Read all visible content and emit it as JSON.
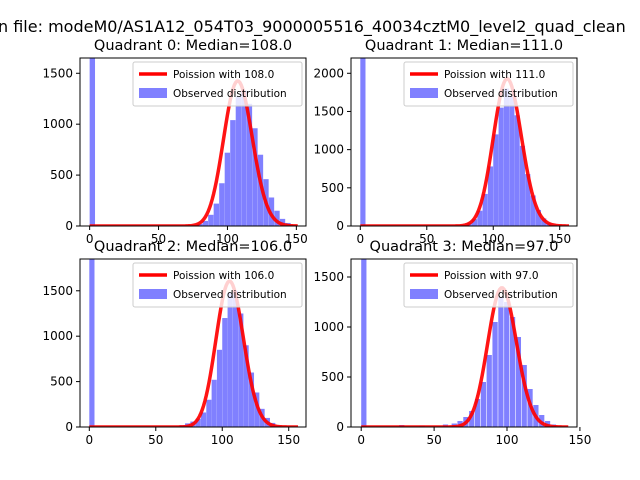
{
  "suptitle": "n file: modeM0/AS1A12_054T03_9000005516_40034cztM0_level2_quad_clean",
  "legend_observed": "Observed distribution",
  "colors": {
    "hist": "#8080ff",
    "fit": "#ff0000"
  },
  "chart_data": [
    {
      "type": "bar",
      "title": "Quadrant 0: Median=108.0",
      "fit_label": "Poission with 108.0",
      "median": 108.0,
      "xlim": [
        -7,
        157
      ],
      "ylim": [
        0,
        1650
      ],
      "xticks": [
        0,
        50,
        100,
        150
      ],
      "yticks": [
        0,
        500,
        1000,
        1500
      ],
      "bin_width": 3.9,
      "bins": [
        [
          0,
          1650
        ],
        [
          70,
          3
        ],
        [
          74,
          8
        ],
        [
          78,
          20
        ],
        [
          82,
          50
        ],
        [
          86,
          110
        ],
        [
          90,
          220
        ],
        [
          94,
          420
        ],
        [
          98,
          720
        ],
        [
          102,
          1040
        ],
        [
          106,
          1270
        ],
        [
          110,
          1330
        ],
        [
          114,
          1200
        ],
        [
          118,
          960
        ],
        [
          122,
          700
        ],
        [
          126,
          460
        ],
        [
          130,
          280
        ],
        [
          134,
          150
        ],
        [
          138,
          70
        ],
        [
          142,
          30
        ],
        [
          146,
          10
        ]
      ]
    },
    {
      "type": "bar",
      "title": "Quadrant 1: Median=111.0",
      "fit_label": "Poission with 111.0",
      "median": 111.0,
      "xlim": [
        -7,
        163
      ],
      "ylim": [
        0,
        2200
      ],
      "xticks": [
        0,
        50,
        100,
        150
      ],
      "yticks": [
        0,
        500,
        1000,
        1500,
        2000
      ],
      "bin_width": 3.9,
      "bins": [
        [
          0,
          2200
        ],
        [
          72,
          5
        ],
        [
          76,
          15
        ],
        [
          80,
          40
        ],
        [
          84,
          90
        ],
        [
          88,
          200
        ],
        [
          92,
          420
        ],
        [
          96,
          780
        ],
        [
          100,
          1200
        ],
        [
          104,
          1550
        ],
        [
          108,
          1800
        ],
        [
          112,
          1700
        ],
        [
          116,
          1450
        ],
        [
          120,
          1050
        ],
        [
          124,
          680
        ],
        [
          128,
          400
        ],
        [
          132,
          210
        ],
        [
          136,
          100
        ],
        [
          140,
          40
        ],
        [
          144,
          15
        ]
      ]
    },
    {
      "type": "bar",
      "title": "Quadrant 2: Median=106.0",
      "fit_label": "Poission with 106.0",
      "median": 106.0,
      "xlim": [
        -7,
        163
      ],
      "ylim": [
        0,
        1850
      ],
      "xticks": [
        0,
        50,
        100,
        150
      ],
      "yticks": [
        0,
        500,
        1000,
        1500
      ],
      "bin_width": 3.9,
      "bins": [
        [
          0,
          1850
        ],
        [
          68,
          20
        ],
        [
          72,
          40
        ],
        [
          76,
          60
        ],
        [
          80,
          90
        ],
        [
          84,
          160
        ],
        [
          88,
          300
        ],
        [
          92,
          520
        ],
        [
          96,
          850
        ],
        [
          100,
          1200
        ],
        [
          104,
          1480
        ],
        [
          108,
          1500
        ],
        [
          112,
          1250
        ],
        [
          116,
          900
        ],
        [
          120,
          600
        ],
        [
          124,
          380
        ],
        [
          128,
          200
        ],
        [
          132,
          100
        ],
        [
          136,
          45
        ],
        [
          140,
          20
        ]
      ]
    },
    {
      "type": "bar",
      "title": "Quadrant 3: Median=97.0",
      "fit_label": "Poission with 97.0",
      "median": 97.0,
      "xlim": [
        -7,
        148
      ],
      "ylim": [
        0,
        1680
      ],
      "xticks": [
        0,
        50,
        100,
        150
      ],
      "yticks": [
        0,
        500,
        1000,
        1500
      ],
      "bin_width": 3.6,
      "bins": [
        [
          0,
          1680
        ],
        [
          26,
          20
        ],
        [
          40,
          15
        ],
        [
          56,
          25
        ],
        [
          62,
          35
        ],
        [
          66,
          60
        ],
        [
          70,
          100
        ],
        [
          74,
          160
        ],
        [
          78,
          280
        ],
        [
          82,
          450
        ],
        [
          86,
          720
        ],
        [
          90,
          1050
        ],
        [
          94,
          1300
        ],
        [
          98,
          1250
        ],
        [
          102,
          1100
        ],
        [
          106,
          900
        ],
        [
          110,
          620
        ],
        [
          114,
          380
        ],
        [
          118,
          220
        ],
        [
          122,
          120
        ],
        [
          126,
          60
        ],
        [
          130,
          25
        ]
      ]
    }
  ]
}
